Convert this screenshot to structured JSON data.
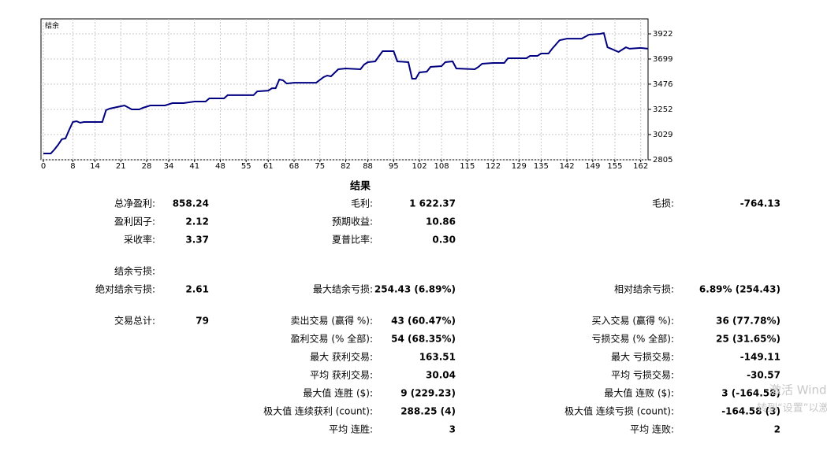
{
  "chart_data": {
    "type": "line",
    "x": [
      0,
      2,
      3,
      4,
      5,
      6,
      7,
      8,
      9,
      10,
      11,
      16,
      17,
      18,
      20,
      22,
      24,
      26,
      27,
      29,
      33,
      35,
      38,
      41,
      44,
      45,
      49,
      50,
      57,
      58,
      61,
      62,
      63,
      64,
      65,
      66,
      68,
      74,
      76,
      77,
      78,
      80,
      82,
      86,
      87,
      88,
      90,
      92,
      95,
      96,
      99,
      100,
      101,
      102,
      104,
      105,
      108,
      109,
      111,
      112,
      117,
      118,
      119,
      122,
      125,
      126,
      131,
      132,
      134,
      135,
      137,
      138,
      140,
      142,
      146,
      148,
      151,
      152,
      153,
      154,
      156,
      158,
      159,
      162,
      164
    ],
    "series": [
      {
        "name": "结余",
        "color": "#000080",
        "values": [
          2861,
          2861,
          2896,
          2938,
          2987,
          2994,
          3070,
          3140,
          3147,
          3133,
          3140,
          3140,
          3245,
          3259,
          3273,
          3287,
          3252,
          3252,
          3266,
          3287,
          3287,
          3308,
          3308,
          3322,
          3322,
          3350,
          3350,
          3378,
          3378,
          3412,
          3419,
          3440,
          3440,
          3517,
          3510,
          3482,
          3489,
          3489,
          3538,
          3552,
          3545,
          3608,
          3615,
          3608,
          3650,
          3671,
          3678,
          3769,
          3769,
          3678,
          3671,
          3524,
          3524,
          3580,
          3587,
          3629,
          3636,
          3671,
          3678,
          3615,
          3608,
          3629,
          3657,
          3664,
          3664,
          3706,
          3706,
          3727,
          3727,
          3748,
          3748,
          3790,
          3866,
          3880,
          3880,
          3915,
          3922,
          3929,
          3803,
          3790,
          3762,
          3803,
          3790,
          3797,
          3790
        ]
      }
    ],
    "xlim": [
      0,
      164
    ],
    "ylim": [
      2805,
      4055
    ],
    "xticks": [
      0,
      8,
      14,
      21,
      28,
      34,
      41,
      48,
      55,
      61,
      68,
      75,
      82,
      88,
      95,
      102,
      108,
      115,
      122,
      129,
      135,
      142,
      149,
      155,
      162
    ],
    "yticks": [
      2805,
      3029,
      3252,
      3476,
      3699,
      3922
    ],
    "grid": true
  },
  "results": {
    "title": "结果",
    "rows": [
      [
        {
          "label": "总净盈利:",
          "value": "858.24"
        },
        {
          "label": "毛利:",
          "value": "1 622.37"
        },
        {
          "label": "毛损:",
          "value": "-764.13"
        }
      ],
      [
        {
          "label": "盈利因子:",
          "value": "2.12"
        },
        {
          "label": "预期收益:",
          "value": "10.86"
        },
        null
      ],
      [
        {
          "label": "采收率:",
          "value": "3.37"
        },
        {
          "label": "夏普比率:",
          "value": "0.30"
        },
        null
      ],
      [
        {
          "label": "结余亏损:"
        },
        null,
        null
      ],
      [
        {
          "label": "绝对结余亏损:",
          "value": "2.61"
        },
        {
          "label": "最大结余亏损:",
          "value": "254.43 (6.89%)"
        },
        {
          "label": "相对结余亏损:",
          "value": "6.89% (254.43)"
        }
      ],
      [
        {
          "label": "交易总计:",
          "value": "79"
        },
        {
          "label": "卖出交易 (赢得 %):",
          "value": "43 (60.47%)"
        },
        {
          "label": "买入交易 (赢得 %):",
          "value": "36 (77.78%)"
        }
      ],
      [
        null,
        {
          "label": "盈利交易 (% 全部):",
          "value": "54 (68.35%)"
        },
        {
          "label": "亏损交易 (% 全部):",
          "value": "25 (31.65%)"
        }
      ],
      [
        null,
        {
          "label": "最大 获利交易:",
          "value": "163.51"
        },
        {
          "label": "最大 亏损交易:",
          "value": "-149.11"
        }
      ],
      [
        null,
        {
          "label": "平均 获利交易:",
          "value": "30.04"
        },
        {
          "label": "平均 亏损交易:",
          "value": "-30.57"
        }
      ],
      [
        null,
        {
          "label": "最大值 连胜 ($):",
          "value": "9 (229.23)"
        },
        {
          "label": "最大值 连败 ($):",
          "value": "3 (-164.58)"
        }
      ],
      [
        null,
        {
          "label": "极大值 连续获利 (count):",
          "value": "288.25 (4)"
        },
        {
          "label": "极大值 连续亏损 (count):",
          "value": "-164.58 (3)"
        }
      ],
      [
        null,
        {
          "label": "平均 连胜:",
          "value": "3"
        },
        {
          "label": "平均 连败:",
          "value": "2"
        }
      ]
    ]
  },
  "watermark": [
    "激活 Windows",
    "转到“设置”以激活"
  ]
}
